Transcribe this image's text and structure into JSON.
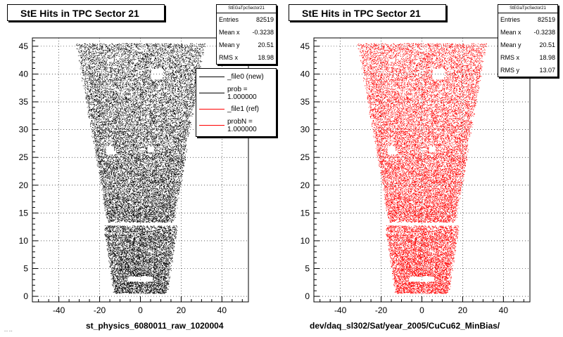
{
  "chart_data": [
    {
      "type": "scatter",
      "title": "StE Hits in TPC Sector 21",
      "xlabel": "st_physics_6080011_raw_1020004",
      "ylabel": "",
      "xlim": [
        -53,
        53
      ],
      "ylim": [
        -1,
        46.5
      ],
      "xticks": [
        -40,
        -20,
        0,
        20,
        40
      ],
      "yticks": [
        0,
        5,
        10,
        15,
        20,
        25,
        30,
        35,
        40,
        45
      ],
      "color": "#000000",
      "grid": true,
      "stats": {
        "name": "StEGaTpcSector21",
        "rows": [
          {
            "label": "Entries",
            "value": "82519"
          },
          {
            "label": "Mean x",
            "value": "-0.3238"
          },
          {
            "label": "Mean y",
            "value": "20.51"
          },
          {
            "label": "RMS x",
            "value": "18.98"
          }
        ]
      },
      "legend": [
        {
          "label": "_file0 (new)",
          "color": "#000000"
        },
        {
          "label": "prob = 1.000000",
          "color": "#000000"
        },
        {
          "label": "_file1 (ref)",
          "color": "#ff0000"
        },
        {
          "label": "probN = 1.000000",
          "color": "#ff0000"
        }
      ],
      "legend_position": "right"
    },
    {
      "type": "scatter",
      "title": "StE Hits in TPC Sector 21",
      "xlabel": "dev/daq_sl302/Sat/year_2005/CuCu62_MinBias/",
      "ylabel": "",
      "xlim": [
        -53,
        53
      ],
      "ylim": [
        -1,
        46.5
      ],
      "xticks": [
        -40,
        -20,
        0,
        20,
        40
      ],
      "yticks": [
        0,
        5,
        10,
        15,
        20,
        25,
        30,
        35,
        40,
        45
      ],
      "color": "#ff0000",
      "grid": true,
      "stats": {
        "name": "StEGaTpcSector21",
        "rows": [
          {
            "label": "Entries",
            "value": "82519"
          },
          {
            "label": "Mean x",
            "value": "-0.3238"
          },
          {
            "label": "Mean y",
            "value": "20.51"
          },
          {
            "label": "RMS x",
            "value": "18.98"
          },
          {
            "label": "RMS y",
            "value": "13.07"
          }
        ]
      }
    }
  ],
  "footnote": "... ..."
}
